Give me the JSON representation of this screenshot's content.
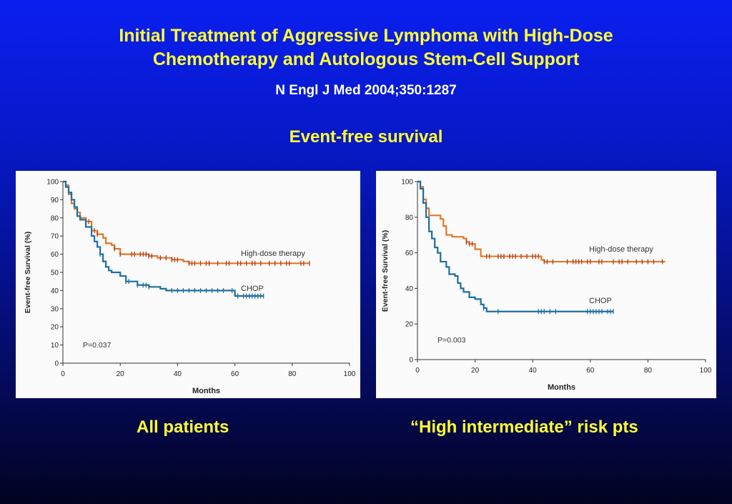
{
  "title_line1": "Initial Treatment of Aggressive Lymphoma with High-Dose",
  "title_line2": "Chemotherapy and Autologous Stem-Cell Support",
  "citation": "N Engl J Med 2004;350:1287",
  "subtitle": "Event-free survival",
  "colors": {
    "title": "#ffff33",
    "hdt": "#e0782a",
    "hdt_ticks": "#b23a1e",
    "chop": "#1f6fa0",
    "chop_ticks": "#1f6fa0"
  },
  "chart_data": [
    {
      "type": "line",
      "caption": "All patients",
      "xlabel": "Months",
      "ylabel": "Event-free Survival (%)",
      "xlim": [
        0,
        100
      ],
      "ylim": [
        0,
        100
      ],
      "xticks": [
        0,
        20,
        40,
        60,
        80,
        100
      ],
      "yticks": [
        0,
        10,
        20,
        30,
        40,
        50,
        60,
        70,
        80,
        90,
        100
      ],
      "p_value": "P=0.037",
      "grid": false,
      "series": [
        {
          "name": "High-dose therapy",
          "color": "#e0782a",
          "points": [
            [
              0,
              100
            ],
            [
              1,
              98
            ],
            [
              2,
              93
            ],
            [
              3,
              88
            ],
            [
              4,
              85
            ],
            [
              5,
              83
            ],
            [
              6,
              80
            ],
            [
              8,
              78
            ],
            [
              10,
              73
            ],
            [
              12,
              71
            ],
            [
              14,
              69
            ],
            [
              15,
              66
            ],
            [
              17,
              65
            ],
            [
              18,
              63
            ],
            [
              20,
              60
            ],
            [
              24,
              60
            ],
            [
              30,
              59
            ],
            [
              33,
              58
            ],
            [
              38,
              57
            ],
            [
              42,
              56
            ],
            [
              44,
              55
            ],
            [
              60,
              55
            ],
            [
              86,
              55
            ]
          ],
          "censor": [
            9,
            11,
            12,
            18,
            20,
            24,
            25,
            27,
            28,
            29,
            30,
            31,
            34,
            36,
            38,
            39,
            40,
            44,
            45,
            46,
            48,
            50,
            51,
            54,
            57,
            58,
            61,
            62,
            64,
            66,
            67,
            69,
            72,
            74,
            76,
            78,
            79,
            83,
            84,
            86
          ]
        },
        {
          "name": "CHOP",
          "color": "#1f6fa0",
          "points": [
            [
              0,
              100
            ],
            [
              1,
              97
            ],
            [
              2,
              94
            ],
            [
              3,
              90
            ],
            [
              4,
              86
            ],
            [
              5,
              81
            ],
            [
              6,
              79
            ],
            [
              8,
              75
            ],
            [
              10,
              70
            ],
            [
              11,
              67
            ],
            [
              12,
              64
            ],
            [
              13,
              60
            ],
            [
              14,
              56
            ],
            [
              15,
              53
            ],
            [
              16,
              51
            ],
            [
              17,
              50
            ],
            [
              20,
              48
            ],
            [
              22,
              45
            ],
            [
              26,
              43
            ],
            [
              30,
              42
            ],
            [
              34,
              41
            ],
            [
              36,
              40
            ],
            [
              59,
              40
            ],
            [
              60,
              37
            ],
            [
              70,
              37
            ]
          ],
          "censor": [
            13,
            22,
            23,
            26,
            28,
            29,
            30,
            38,
            40,
            42,
            44,
            46,
            48,
            50,
            52,
            54,
            56,
            59,
            61,
            63,
            64,
            65,
            66,
            67,
            68,
            69,
            70
          ]
        }
      ]
    },
    {
      "type": "line",
      "caption": "“High intermediate” risk pts",
      "xlabel": "Months",
      "ylabel": "Event-free Survival (%)",
      "xlim": [
        0,
        100
      ],
      "ylim": [
        0,
        100
      ],
      "xticks": [
        0,
        20,
        40,
        60,
        80,
        100
      ],
      "yticks": [
        0,
        20,
        40,
        60,
        80,
        100
      ],
      "p_value": "P=0.003",
      "grid": false,
      "series": [
        {
          "name": "High-dose therapy",
          "color": "#e0782a",
          "points": [
            [
              0,
              100
            ],
            [
              1,
              97
            ],
            [
              2,
              90
            ],
            [
              3,
              85
            ],
            [
              4,
              81
            ],
            [
              8,
              79
            ],
            [
              9,
              75
            ],
            [
              10,
              70
            ],
            [
              12,
              69
            ],
            [
              16,
              68
            ],
            [
              17,
              66
            ],
            [
              18,
              65
            ],
            [
              20,
              62
            ],
            [
              22,
              58
            ],
            [
              42,
              58
            ],
            [
              43,
              56
            ],
            [
              44,
              55
            ],
            [
              60,
              55
            ],
            [
              86,
              55
            ]
          ],
          "censor": [
            17,
            18,
            19,
            24,
            25,
            28,
            29,
            30,
            32,
            33,
            34,
            36,
            38,
            40,
            41,
            42,
            44,
            45,
            47,
            52,
            54,
            55,
            56,
            57,
            59,
            60,
            63,
            64,
            68,
            70,
            71,
            73,
            76,
            78,
            80,
            82,
            85
          ]
        },
        {
          "name": "CHOP",
          "color": "#1f6fa0",
          "points": [
            [
              0,
              100
            ],
            [
              1,
              96
            ],
            [
              2,
              88
            ],
            [
              3,
              80
            ],
            [
              4,
              72
            ],
            [
              5,
              68
            ],
            [
              6,
              63
            ],
            [
              7,
              60
            ],
            [
              8,
              55
            ],
            [
              10,
              52
            ],
            [
              11,
              48
            ],
            [
              13,
              47
            ],
            [
              14,
              43
            ],
            [
              15,
              40
            ],
            [
              16,
              38
            ],
            [
              18,
              35
            ],
            [
              20,
              34
            ],
            [
              22,
              31
            ],
            [
              23,
              29
            ],
            [
              24,
              27
            ],
            [
              68,
              27
            ]
          ],
          "censor": [
            23,
            28,
            42,
            43,
            44,
            46,
            48,
            59,
            60,
            61,
            62,
            63,
            64,
            66,
            67,
            68
          ]
        }
      ]
    }
  ]
}
